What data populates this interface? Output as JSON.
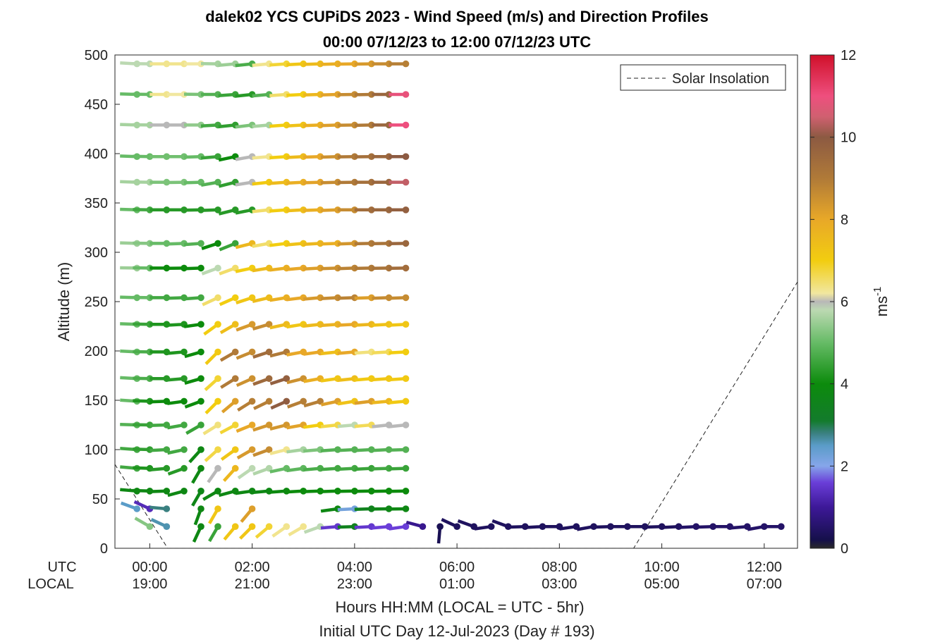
{
  "chart_data": {
    "type": "wind-barb-profile",
    "title_line1": "dalek02 YCS CUPiDS 2023 - Wind Speed (m/s) and Direction Profiles",
    "title_line2": "00:00 07/12/23 to 12:00 07/12/23  UTC",
    "ylabel": "Altitude (m)",
    "ylim": [
      0,
      500
    ],
    "yticks": [
      0,
      50,
      100,
      150,
      200,
      250,
      300,
      350,
      400,
      450,
      500
    ],
    "xlim_hours": [
      -0.68,
      12.65
    ],
    "xticks_hours": [
      0,
      2,
      4,
      6,
      8,
      10,
      12
    ],
    "utc_label": "UTC",
    "local_label": "LOCAL",
    "xticks_utc": [
      "00:00",
      "02:00",
      "04:00",
      "06:00",
      "08:00",
      "10:00",
      "12:00"
    ],
    "xticks_local": [
      "19:00",
      "21:00",
      "23:00",
      "01:00",
      "03:00",
      "05:00",
      "07:00"
    ],
    "xlabel_line1": "Hours HH:MM  (LOCAL = UTC - 5hr)",
    "xlabel_line2": "Initial UTC Day 12-Jul-2023 (Day # 193)",
    "legend_entry": "Solar Insolation",
    "legend_location": "top-right",
    "colorbar_label": "ms",
    "colorbar_label_sup": "-1",
    "colorbar_range": [
      0,
      12
    ],
    "colorbar_ticks": [
      "0",
      "2",
      "4",
      "6",
      "8",
      "10",
      "12"
    ],
    "colorbar_stops": [
      {
        "v": 0.0,
        "c": "#2a2a2a"
      },
      {
        "v": 0.2,
        "c": "#15104a"
      },
      {
        "v": 1.0,
        "c": "#3d1898"
      },
      {
        "v": 1.6,
        "c": "#6a3ed8"
      },
      {
        "v": 2.0,
        "c": "#86a6ea"
      },
      {
        "v": 2.5,
        "c": "#5a9cc8"
      },
      {
        "v": 2.8,
        "c": "#3a8080"
      },
      {
        "v": 3.1,
        "c": "#137b2c"
      },
      {
        "v": 4.0,
        "c": "#0c8b0c"
      },
      {
        "v": 5.0,
        "c": "#66bb66"
      },
      {
        "v": 5.8,
        "c": "#bcd9b2"
      },
      {
        "v": 6.0,
        "c": "#b8b8b8"
      },
      {
        "v": 6.2,
        "c": "#f1e7a0"
      },
      {
        "v": 7.0,
        "c": "#f2cd10"
      },
      {
        "v": 8.0,
        "c": "#e8a828"
      },
      {
        "v": 9.0,
        "c": "#b07a38"
      },
      {
        "v": 10.0,
        "c": "#8c5a42"
      },
      {
        "v": 10.5,
        "c": "#d06070"
      },
      {
        "v": 11.0,
        "c": "#ee4f7e"
      },
      {
        "v": 12.0,
        "c": "#d0102a"
      }
    ],
    "solar_insolation_line": [
      {
        "hour": -0.68,
        "altitude": 85
      },
      {
        "hour": 0.35,
        "altitude": 0
      },
      {
        "hour": 9.45,
        "altitude": 0
      },
      {
        "hour": 12.65,
        "altitude": 270
      }
    ],
    "upper_levels_m": [
      491,
      460,
      429,
      397,
      371,
      343,
      309,
      284,
      254,
      227,
      199,
      172,
      149,
      125,
      100,
      81
    ],
    "upper_times_h": [
      -0.25,
      0.0,
      0.33,
      0.67,
      1.0,
      1.33,
      1.67,
      2.0,
      2.33,
      2.67,
      3.0,
      3.33,
      3.67,
      4.0,
      4.33,
      4.67,
      5.0
    ],
    "upper_speeds_ms": [
      [
        5.8,
        5.8,
        6.3,
        6.3,
        6.2,
        5.6,
        5.5,
        4.7,
        6.3,
        6.8,
        7.2,
        7.5,
        7.8,
        8.0,
        8.3,
        8.6,
        8.9
      ],
      [
        5.0,
        5.0,
        6.3,
        6.2,
        5.2,
        4.8,
        4.5,
        4.3,
        4.8,
        6.5,
        7.0,
        7.6,
        8.1,
        8.6,
        9.0,
        9.6,
        10.9
      ],
      [
        5.6,
        5.6,
        6.0,
        6.0,
        5.4,
        4.6,
        4.4,
        5.2,
        5.6,
        7.0,
        7.3,
        7.8,
        8.2,
        8.6,
        9.0,
        9.6,
        11.0
      ],
      [
        5.0,
        5.0,
        5.1,
        5.1,
        5.0,
        4.5,
        4.0,
        6.0,
        6.3,
        7.0,
        7.5,
        8.0,
        8.5,
        9.0,
        9.3,
        9.6,
        10.0
      ],
      [
        5.6,
        5.6,
        5.2,
        5.2,
        5.0,
        4.8,
        4.4,
        6.0,
        7.1,
        7.5,
        7.8,
        8.1,
        8.6,
        9.0,
        9.3,
        9.6,
        10.4
      ],
      [
        5.0,
        4.6,
        4.3,
        4.3,
        4.3,
        4.3,
        4.3,
        4.3,
        6.5,
        7.0,
        7.4,
        7.8,
        8.2,
        8.6,
        9.4,
        9.6,
        9.8
      ],
      [
        5.5,
        5.3,
        5.0,
        5.0,
        4.8,
        4.0,
        4.5,
        7.6,
        6.5,
        7.0,
        7.3,
        7.6,
        7.8,
        8.4,
        9.0,
        9.2,
        9.6
      ],
      [
        5.5,
        5.0,
        4.0,
        4.0,
        4.0,
        5.8,
        6.5,
        7.0,
        7.5,
        7.8,
        8.0,
        8.2,
        8.5,
        8.8,
        9.0,
        9.2,
        9.4
      ],
      [
        5.0,
        5.0,
        4.6,
        4.6,
        4.6,
        6.5,
        7.0,
        7.2,
        7.5,
        7.8,
        8.0,
        8.3,
        8.6,
        8.8,
        8.2,
        8.6,
        8.6
      ],
      [
        5.0,
        4.5,
        4.2,
        4.2,
        4.0,
        7.0,
        7.4,
        8.3,
        8.6,
        7.5,
        7.2,
        7.5,
        7.7,
        8.0,
        7.6,
        7.3,
        7.2
      ],
      [
        5.0,
        4.7,
        4.2,
        4.2,
        4.0,
        7.1,
        9.0,
        8.6,
        9.4,
        9.0,
        8.0,
        8.0,
        7.4,
        8.0,
        6.4,
        6.6,
        7.0
      ],
      [
        5.0,
        4.7,
        4.3,
        4.3,
        4.0,
        6.8,
        9.0,
        8.5,
        9.5,
        9.8,
        8.5,
        7.8,
        7.2,
        7.4,
        7.1,
        7.2,
        7.1
      ],
      [
        5.0,
        4.2,
        4.0,
        4.0,
        4.0,
        7.0,
        8.2,
        8.9,
        8.9,
        9.9,
        8.9,
        8.9,
        8.2,
        7.3,
        8.2,
        7.6,
        7.1
      ],
      [
        4.8,
        4.5,
        4.6,
        4.6,
        4.5,
        6.4,
        6.8,
        8.0,
        8.4,
        8.4,
        8.1,
        7.0,
        6.7,
        5.8,
        6.6,
        6.0,
        6.0
      ],
      [
        4.6,
        4.4,
        4.6,
        4.6,
        3.8,
        6.7,
        7.2,
        8.3,
        8.6,
        6.3,
        5.6,
        5.2,
        4.8,
        4.8,
        4.8,
        4.8,
        4.8
      ],
      [
        4.6,
        4.2,
        4.3,
        4.3,
        3.8,
        6.0,
        7.6,
        5.8,
        5.7,
        5.0,
        4.9,
        4.7,
        4.6,
        4.6,
        4.5,
        4.6,
        4.5
      ]
    ],
    "upper_dirs_deg": [
      [
        -3,
        -1,
        0,
        0,
        0,
        -1,
        5,
        6,
        5,
        4,
        3,
        2,
        2,
        1,
        1,
        0,
        0
      ],
      [
        -2,
        -1,
        0,
        0,
        -1,
        0,
        4,
        6,
        5,
        4,
        3,
        2,
        2,
        1,
        1,
        0,
        0
      ],
      [
        -2,
        -1,
        0,
        0,
        0,
        3,
        6,
        7,
        5,
        4,
        3,
        2,
        2,
        1,
        1,
        0,
        0
      ],
      [
        -2,
        -1,
        0,
        0,
        2,
        5,
        12,
        10,
        5,
        4,
        3,
        2,
        2,
        1,
        1,
        0,
        0
      ],
      [
        -2,
        -1,
        0,
        1,
        2,
        10,
        14,
        9,
        6,
        4,
        3,
        2,
        2,
        1,
        0,
        0,
        0
      ],
      [
        -2,
        -1,
        0,
        0,
        1,
        2,
        14,
        11,
        6,
        4,
        3,
        2,
        2,
        0,
        0,
        0,
        0
      ],
      [
        -2,
        -1,
        0,
        2,
        4,
        18,
        22,
        14,
        10,
        7,
        5,
        3,
        2,
        2,
        1,
        1,
        1
      ],
      [
        -1,
        -1,
        0,
        1,
        2,
        20,
        20,
        12,
        9,
        7,
        5,
        3,
        2,
        2,
        1,
        1,
        1
      ],
      [
        -2,
        -1,
        0,
        2,
        4,
        25,
        24,
        18,
        13,
        9,
        7,
        5,
        3,
        2,
        2,
        2,
        2
      ],
      [
        -2,
        -1,
        0,
        3,
        8,
        36,
        30,
        20,
        16,
        12,
        9,
        6,
        4,
        3,
        3,
        3,
        3
      ],
      [
        -3,
        -1,
        0,
        5,
        16,
        45,
        30,
        22,
        18,
        14,
        10,
        8,
        6,
        5,
        4,
        3,
        3
      ],
      [
        -3,
        -1,
        0,
        5,
        16,
        42,
        32,
        24,
        20,
        18,
        14,
        10,
        8,
        6,
        5,
        4,
        4
      ],
      [
        -4,
        -2,
        2,
        8,
        20,
        45,
        40,
        32,
        26,
        24,
        20,
        16,
        12,
        9,
        7,
        5,
        5
      ],
      [
        -2,
        -1,
        2,
        10,
        30,
        32,
        28,
        22,
        18,
        14,
        10,
        8,
        6,
        5,
        5,
        6,
        6
      ],
      [
        -4,
        -2,
        3,
        12,
        48,
        42,
        36,
        30,
        20,
        14,
        8,
        5,
        4,
        3,
        3,
        3,
        2
      ],
      [
        -5,
        -2,
        5,
        20,
        60,
        55,
        48,
        35,
        20,
        12,
        8,
        5,
        4,
        3,
        3,
        2,
        2
      ]
    ],
    "level_58m": {
      "altitude": 58,
      "times_h": [
        -0.25,
        0.0,
        0.33,
        0.67,
        1.0,
        1.33,
        1.67,
        2.0,
        2.33,
        2.67,
        3.0,
        3.33,
        3.67,
        4.0,
        4.33,
        4.67,
        5.0
      ],
      "speeds_ms": [
        3.8,
        3.8,
        3.8,
        3.8,
        3.7,
        3.8,
        3.8,
        3.8,
        3.8,
        3.9,
        4.0,
        4.0,
        4.0,
        4.0,
        4.0,
        4.0,
        4.0
      ],
      "dirs_deg": [
        -5,
        -2,
        2,
        15,
        60,
        30,
        15,
        8,
        5,
        4,
        3,
        2,
        2,
        1,
        1,
        1,
        1
      ]
    },
    "level_40m": {
      "altitude": 40,
      "times_h": [
        -0.25,
        0.0,
        0.33,
        1.0,
        1.33,
        2.0,
        3.67,
        4.0,
        4.33,
        4.67,
        5.0
      ],
      "speeds_ms": [
        2.5,
        1.3,
        2.8,
        3.8,
        7.2,
        8.2,
        3.8,
        2.2,
        3.5,
        3.7,
        3.8
      ],
      "dirs_deg": [
        -20,
        -25,
        -5,
        70,
        60,
        50,
        8,
        3,
        2,
        1,
        1
      ]
    },
    "level_22m": {
      "altitude": 22,
      "times_h": [
        0.0,
        0.33,
        1.0,
        1.33,
        1.67,
        2.0,
        2.33,
        2.67,
        3.0,
        3.33,
        3.67,
        4.0,
        4.33,
        4.67,
        5.0,
        5.33,
        5.67,
        6.0,
        6.33,
        6.67,
        7.0,
        7.33,
        7.67,
        8.0,
        8.33,
        8.67,
        9.0,
        9.33,
        9.67,
        10.0,
        10.33,
        10.67,
        11.0,
        11.33,
        11.67,
        12.0,
        12.33
      ],
      "speeds_ms": [
        5.3,
        2.6,
        3.8,
        4.5,
        7.2,
        7.2,
        6.8,
        6.3,
        6.3,
        5.8,
        1.5,
        3.5,
        1.5,
        1.6,
        1.6,
        0.9,
        0.3,
        0.4,
        0.4,
        0.4,
        0.4,
        0.4,
        0.4,
        0.4,
        0.4,
        0.4,
        0.4,
        0.4,
        0.4,
        0.4,
        0.4,
        0.5,
        0.5,
        0.5,
        0.5,
        0.5,
        0.5
      ],
      "dirs_deg": [
        -30,
        -25,
        65,
        60,
        50,
        45,
        40,
        35,
        30,
        20,
        5,
        2,
        3,
        5,
        8,
        -15,
        85,
        -25,
        -20,
        8,
        -20,
        2,
        3,
        0,
        8,
        10,
        2,
        0,
        0,
        2,
        3,
        3,
        2,
        0,
        5,
        10,
        0
      ]
    }
  }
}
